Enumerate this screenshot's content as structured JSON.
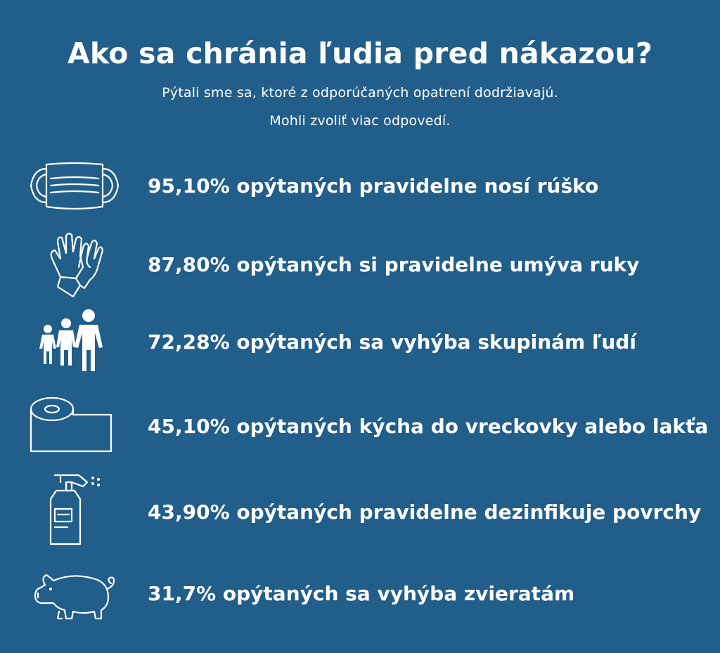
{
  "header": {
    "title": "Ako sa chránia ľudia pred nákazou?",
    "subtitle_line1": "Pýtali sme sa, ktoré z odporúčaných opatrení dodržiavajú.",
    "subtitle_line2": "Mohli zvoliť viac odpovedí."
  },
  "items": [
    {
      "icon": "face-mask-icon",
      "text": "95,10% opýtaných pravidelne nosí rúško",
      "percent": 95.1
    },
    {
      "icon": "gloves-icon",
      "text": "87,80% opýtaných si pravidelne umýva ruky",
      "percent": 87.8
    },
    {
      "icon": "people-group-icon",
      "text": "72,28% opýtaných sa vyhýba skupinám ľudí",
      "percent": 72.28
    },
    {
      "icon": "toilet-paper-icon",
      "text": "45,10% opýtaných kýcha do vreckovky alebo lakťa",
      "percent": 45.1
    },
    {
      "icon": "spray-bottle-icon",
      "text": "43,90% opýtaných pravidelne dezinfikuje povrchy",
      "percent": 43.9
    },
    {
      "icon": "pig-icon",
      "text": "31,7% opýtaných sa vyhýba zvieratám",
      "percent": 31.7
    }
  ],
  "colors": {
    "background": "#215e8a",
    "foreground": "#ffffff"
  }
}
